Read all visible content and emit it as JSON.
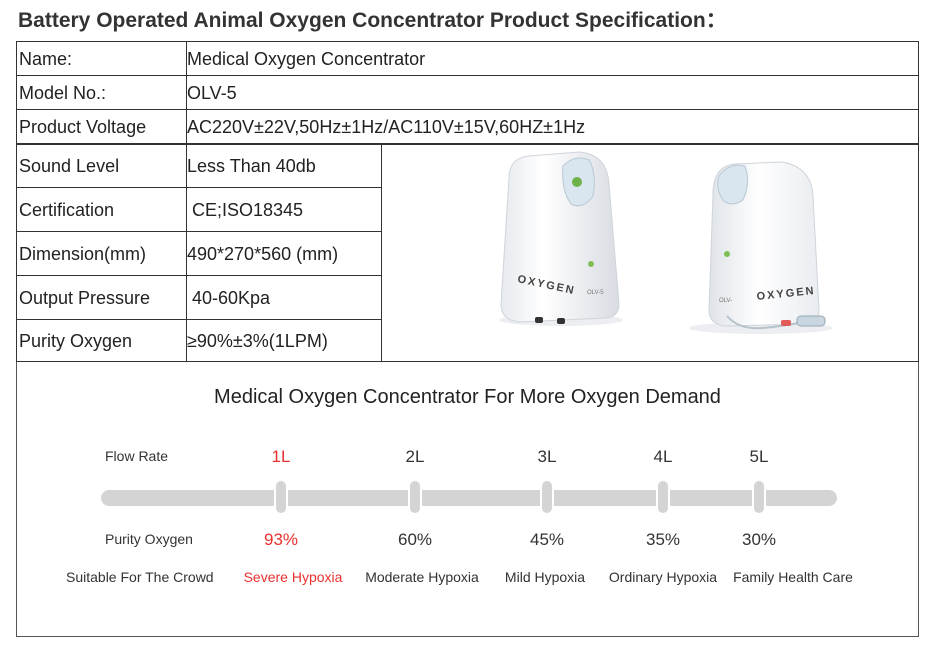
{
  "title": "Battery Operated Animal Oxygen Concentrator Product Specification：",
  "spec": {
    "rows": [
      {
        "label": "Name:",
        "value": "Medical Oxygen Concentrator"
      },
      {
        "label": "Model No.:",
        "value": "OLV-5"
      },
      {
        "label": "Product Voltage",
        "value": "AC220V±22V,50Hz±1Hz/AC110V±15V,60HZ±1Hz"
      },
      {
        "label": "Sound Level",
        "value": "Less Than 40db"
      },
      {
        "label": "Certification",
        "value": " CE;ISO18345"
      },
      {
        "label": "Dimension(mm)",
        "value": "490*270*560 (mm)"
      },
      {
        "label": "Output Pressure",
        "value": " 40-60Kpa"
      },
      {
        "label": "Purity Oxygen",
        "value": "≥90%±3%(1LPM)"
      }
    ]
  },
  "product_photo": {
    "left_unit": {
      "brand_text": "OXYGEN",
      "model_text": "OLV-5"
    },
    "right_unit": {
      "brand_text": "OXYGEN",
      "model_text": "OLV-"
    }
  },
  "demand": {
    "title": "Medical Oxygen Concentrator For More Oxygen Demand",
    "flow_label": "Flow Rate",
    "purity_label": "Purity Oxygen",
    "crowd_label": "Suitable For The Crowd",
    "levels": [
      {
        "flow": "1L",
        "purity": "93%",
        "crowd": "Severe Hypoxia"
      },
      {
        "flow": "2L",
        "purity": "60%",
        "crowd": "Moderate Hypoxia"
      },
      {
        "flow": "3L",
        "purity": "45%",
        "crowd": "Mild Hypoxia"
      },
      {
        "flow": "4L",
        "purity": "35%",
        "crowd": "Ordinary Hypoxia"
      },
      {
        "flow": "5L",
        "purity": "30%",
        "crowd": "Family Health Care"
      }
    ],
    "highlight_color": "#e8312f"
  }
}
